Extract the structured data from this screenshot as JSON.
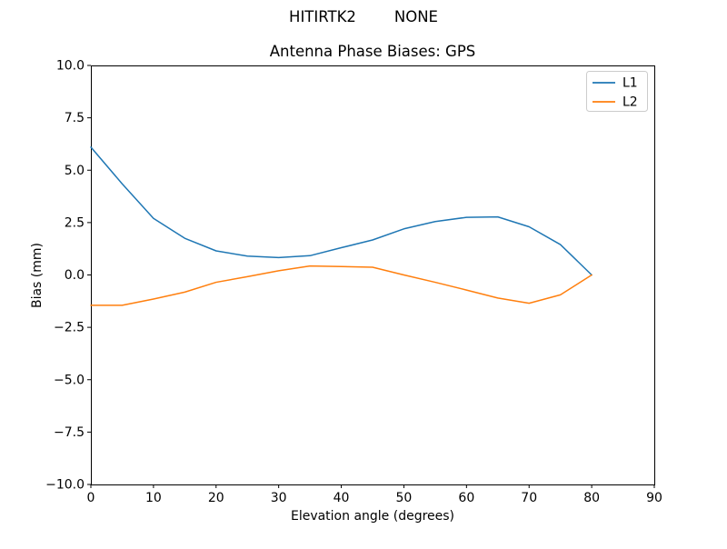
{
  "chart_data": {
    "type": "line",
    "suptitle": "HITIRTK2        NONE",
    "title": "Antenna Phase Biases: GPS",
    "xlabel": "Elevation angle (degrees)",
    "ylabel": "Bias (mm)",
    "xlim": [
      0,
      90
    ],
    "ylim": [
      -10,
      10
    ],
    "x_ticks": [
      0,
      10,
      20,
      30,
      40,
      50,
      60,
      70,
      80,
      90
    ],
    "y_ticks": [
      -10,
      -7.5,
      -5,
      -2.5,
      0,
      2.5,
      5,
      7.5,
      10
    ],
    "grid": false,
    "background_color": "#ffffff",
    "spine_color": "#000000",
    "legend": {
      "position": "upper right",
      "entries": [
        "L1",
        "L2"
      ]
    },
    "x": [
      0,
      5,
      10,
      15,
      20,
      25,
      30,
      35,
      40,
      45,
      50,
      55,
      60,
      65,
      70,
      75,
      80
    ],
    "series": [
      {
        "name": "L1",
        "color": "#1f77b4",
        "values": [
          6.1,
          4.35,
          2.7,
          1.75,
          1.15,
          0.9,
          0.83,
          0.92,
          1.3,
          1.67,
          2.2,
          2.55,
          2.75,
          2.77,
          2.3,
          1.45,
          0.0
        ]
      },
      {
        "name": "L2",
        "color": "#ff7f0e",
        "values": [
          -1.45,
          -1.45,
          -1.15,
          -0.82,
          -0.35,
          -0.08,
          0.2,
          0.43,
          0.4,
          0.37,
          0.0,
          -0.35,
          -0.72,
          -1.1,
          -1.35,
          -0.95,
          0.0
        ]
      }
    ]
  }
}
